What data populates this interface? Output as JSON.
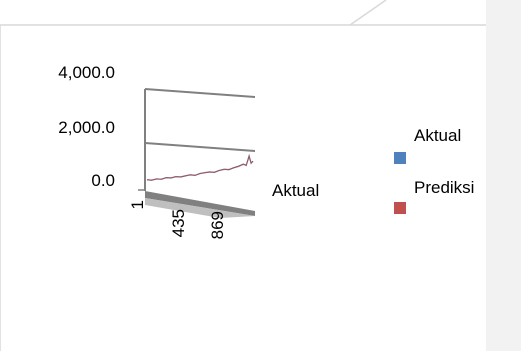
{
  "chart_data": {
    "type": "line",
    "chart_style": "3d-line",
    "y_ticks": [
      "4,000.0",
      "2,000.0",
      "0.0"
    ],
    "y_tick_values": [
      4000,
      2000,
      0
    ],
    "x_ticks": [
      "1",
      "435",
      "869"
    ],
    "x_tick_values": [
      1,
      435,
      869
    ],
    "depth_label": "Aktual",
    "ylim": [
      0,
      4000
    ],
    "xlim": [
      1,
      1100
    ],
    "grid": true,
    "legend_position": "right",
    "series": [
      {
        "name": "Aktual",
        "color": "#4f81bd",
        "x": [
          1,
          50,
          100,
          150,
          200,
          250,
          300,
          350,
          400,
          450,
          500,
          550,
          600,
          650,
          700,
          750,
          800,
          850,
          900,
          950,
          1000,
          1030,
          1060,
          1080,
          1100
        ],
        "values": [
          80,
          60,
          110,
          90,
          150,
          130,
          180,
          160,
          200,
          240,
          210,
          280,
          300,
          330,
          310,
          380,
          420,
          400,
          470,
          520,
          600,
          540,
          900,
          620,
          700
        ]
      },
      {
        "name": "Prediksi",
        "color": "#c0504d",
        "x": [
          1,
          50,
          100,
          150,
          200,
          250,
          300,
          350,
          400,
          450,
          500,
          550,
          600,
          650,
          700,
          750,
          800,
          850,
          900,
          950,
          1000,
          1030,
          1060,
          1080,
          1100
        ],
        "values": [
          90,
          70,
          100,
          100,
          140,
          140,
          170,
          170,
          210,
          230,
          220,
          270,
          310,
          320,
          320,
          370,
          410,
          410,
          460,
          510,
          580,
          560,
          860,
          640,
          690
        ]
      }
    ]
  }
}
